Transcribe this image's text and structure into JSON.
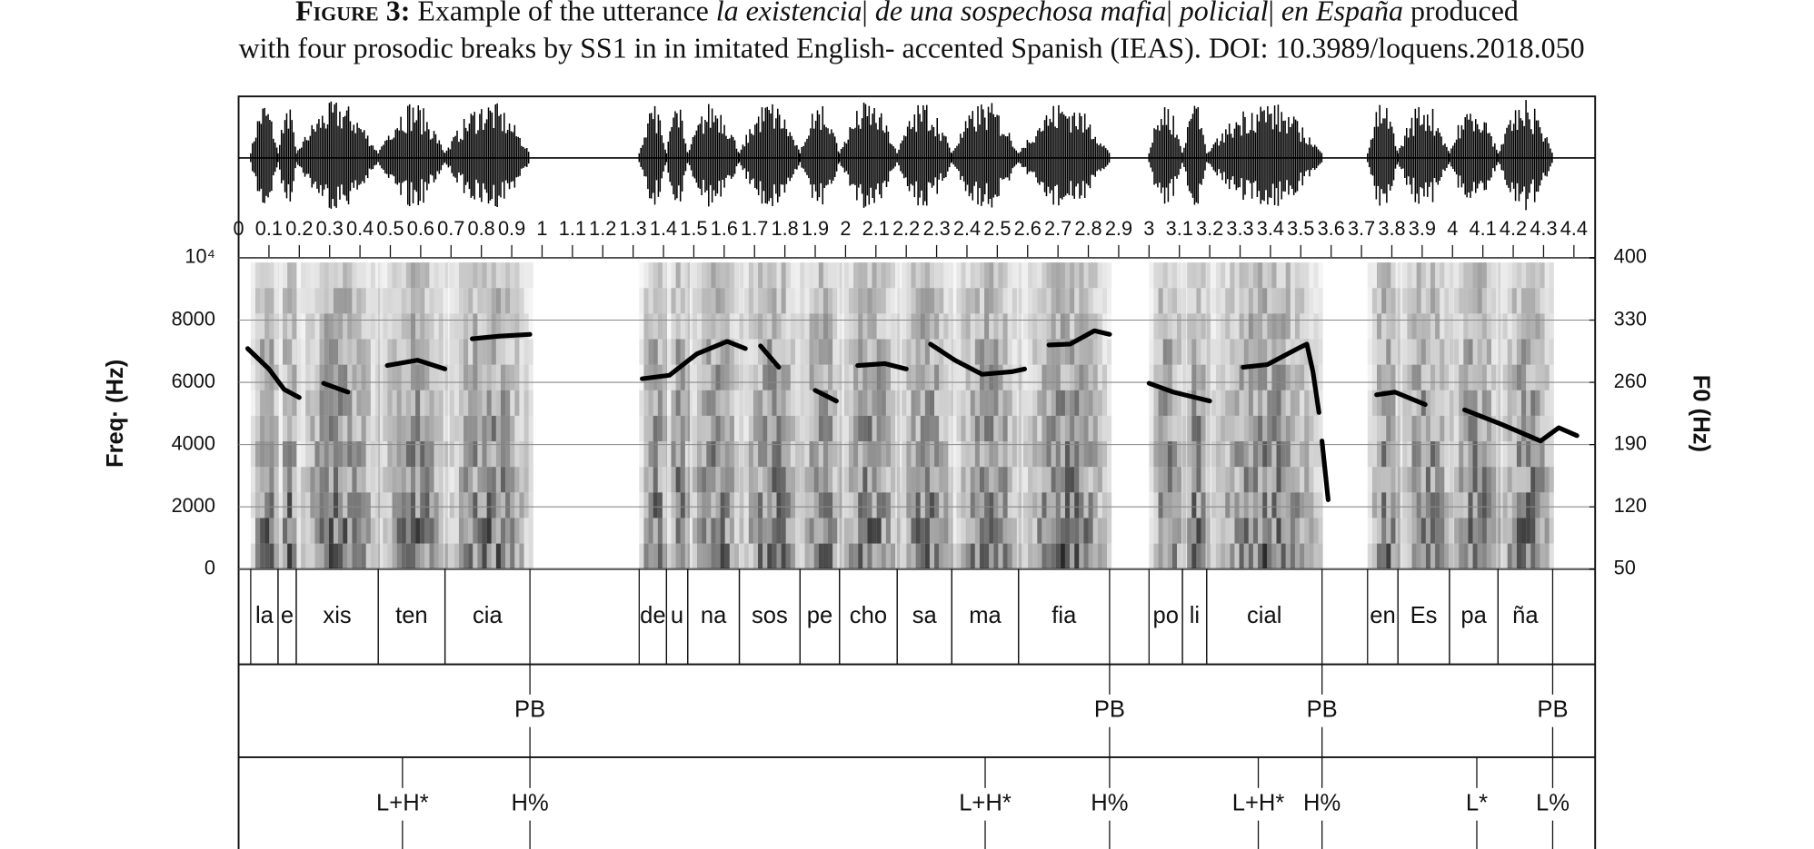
{
  "chart_data": {
    "type": "spectrogram",
    "title": {
      "label": "Figure 3:",
      "parts": [
        " Example of the utterance ",
        "la existencia",
        "| ",
        "de una sospechosa mafia",
        "| ",
        "policial",
        "| ",
        "en España",
        " produced"
      ],
      "line2": "with four prosodic breaks by SS1 in in imitated English- accented Spanish (IEAS). DOI: 10.3989/loquens.2018.050"
    },
    "y_label": "Freq· (Hz)",
    "y2_label": "F0 (Hz)",
    "xlim": [
      0,
      4.47
    ],
    "xticks": [
      0,
      0.1,
      0.2,
      0.3,
      0.4,
      0.5,
      0.6,
      0.7,
      0.8,
      0.9,
      1,
      1.1,
      1.2,
      1.3,
      1.4,
      1.5,
      1.6,
      1.7,
      1.8,
      1.9,
      2,
      2.1,
      2.2,
      2.3,
      2.4,
      2.5,
      2.6,
      2.7,
      2.8,
      2.9,
      3,
      3.1,
      3.2,
      3.3,
      3.4,
      3.5,
      3.6,
      3.7,
      3.8,
      3.9,
      4,
      4.1,
      4.2,
      4.3,
      4.4
    ],
    "ylim": [
      0,
      10000
    ],
    "yticks": [
      0,
      2000,
      4000,
      6000,
      8000,
      {
        "value": 10000,
        "label": "10⁴"
      }
    ],
    "y2lim": [
      50,
      400
    ],
    "y2ticks": [
      50,
      120,
      190,
      260,
      330,
      400
    ],
    "grid": true,
    "series": [
      {
        "color": "#000000",
        "axis": "y2",
        "x": [
          0.03,
          0.1,
          0.15,
          0.2,
          null,
          0.28,
          0.36,
          null,
          0.49,
          0.59,
          0.68,
          null,
          0.77,
          0.86,
          0.96,
          null,
          1.33,
          1.42,
          1.51,
          1.61,
          1.67,
          null,
          1.72,
          1.78,
          null,
          1.9,
          1.97,
          null,
          2.04,
          2.13,
          2.2,
          null,
          2.28,
          2.36,
          2.45,
          2.55,
          2.59,
          null,
          2.67,
          2.74,
          2.82,
          2.87,
          null,
          3.0,
          3.08,
          3.2,
          null,
          3.31,
          3.39,
          3.49,
          3.52,
          3.54,
          3.56,
          null,
          3.57,
          3.59,
          null,
          3.75,
          3.81,
          3.91,
          null,
          4.04,
          4.16,
          4.29,
          4.35,
          4.41
        ],
        "values": [
          298,
          275,
          252,
          243,
          null,
          259,
          249,
          null,
          279,
          285,
          275,
          null,
          309,
          312,
          314,
          null,
          264,
          268,
          292,
          306,
          298,
          null,
          301,
          277,
          null,
          251,
          239,
          null,
          279,
          281,
          275,
          null,
          303,
          285,
          269,
          272,
          275,
          null,
          302,
          303,
          318,
          314,
          null,
          259,
          249,
          239,
          null,
          277,
          280,
          298,
          303,
          272,
          226,
          null,
          194,
          128,
          null,
          246,
          249,
          235,
          null,
          229,
          213,
          194,
          209,
          200
        ]
      }
    ],
    "tiers": [
      {
        "intervals": [
          {
            "label": "la",
            "start": 0.04,
            "end": 0.13
          },
          {
            "label": "e",
            "start": 0.13,
            "end": 0.19
          },
          {
            "label": "xis",
            "start": 0.19,
            "end": 0.46
          },
          {
            "label": "ten",
            "start": 0.46,
            "end": 0.68
          },
          {
            "label": "cia",
            "start": 0.68,
            "end": 0.96
          },
          {
            "label": "de",
            "start": 1.32,
            "end": 1.41
          },
          {
            "label": "u",
            "start": 1.41,
            "end": 1.48
          },
          {
            "label": "na",
            "start": 1.48,
            "end": 1.65
          },
          {
            "label": "sos",
            "start": 1.65,
            "end": 1.85
          },
          {
            "label": "pe",
            "start": 1.85,
            "end": 1.98
          },
          {
            "label": "cho",
            "start": 1.98,
            "end": 2.17
          },
          {
            "label": "sa",
            "start": 2.17,
            "end": 2.35
          },
          {
            "label": "ma",
            "start": 2.35,
            "end": 2.57
          },
          {
            "label": "fia",
            "start": 2.57,
            "end": 2.87
          },
          {
            "label": "po",
            "start": 3.0,
            "end": 3.11
          },
          {
            "label": "li",
            "start": 3.11,
            "end": 3.19
          },
          {
            "label": "cial",
            "start": 3.19,
            "end": 3.57
          },
          {
            "label": "en",
            "start": 3.72,
            "end": 3.82
          },
          {
            "label": "Es",
            "start": 3.82,
            "end": 3.99
          },
          {
            "label": "pa",
            "start": 3.99,
            "end": 4.15
          },
          {
            "label": "ña",
            "start": 4.15,
            "end": 4.33
          }
        ]
      },
      {
        "points": [
          {
            "label": "PB",
            "time": 0.96
          },
          {
            "label": "PB",
            "time": 2.87
          },
          {
            "label": "PB",
            "time": 3.57
          },
          {
            "label": "PB",
            "time": 4.33
          }
        ]
      },
      {
        "points": [
          {
            "label": "L+H*",
            "time": 0.54
          },
          {
            "label": "H%",
            "time": 0.96
          },
          {
            "label": "L+H*",
            "time": 2.46
          },
          {
            "label": "H%",
            "time": 2.87
          },
          {
            "label": "L+H*",
            "time": 3.36
          },
          {
            "label": "H%",
            "time": 3.57
          },
          {
            "label": "L*",
            "time": 4.08
          },
          {
            "label": "L%",
            "time": 4.33
          }
        ]
      }
    ]
  }
}
